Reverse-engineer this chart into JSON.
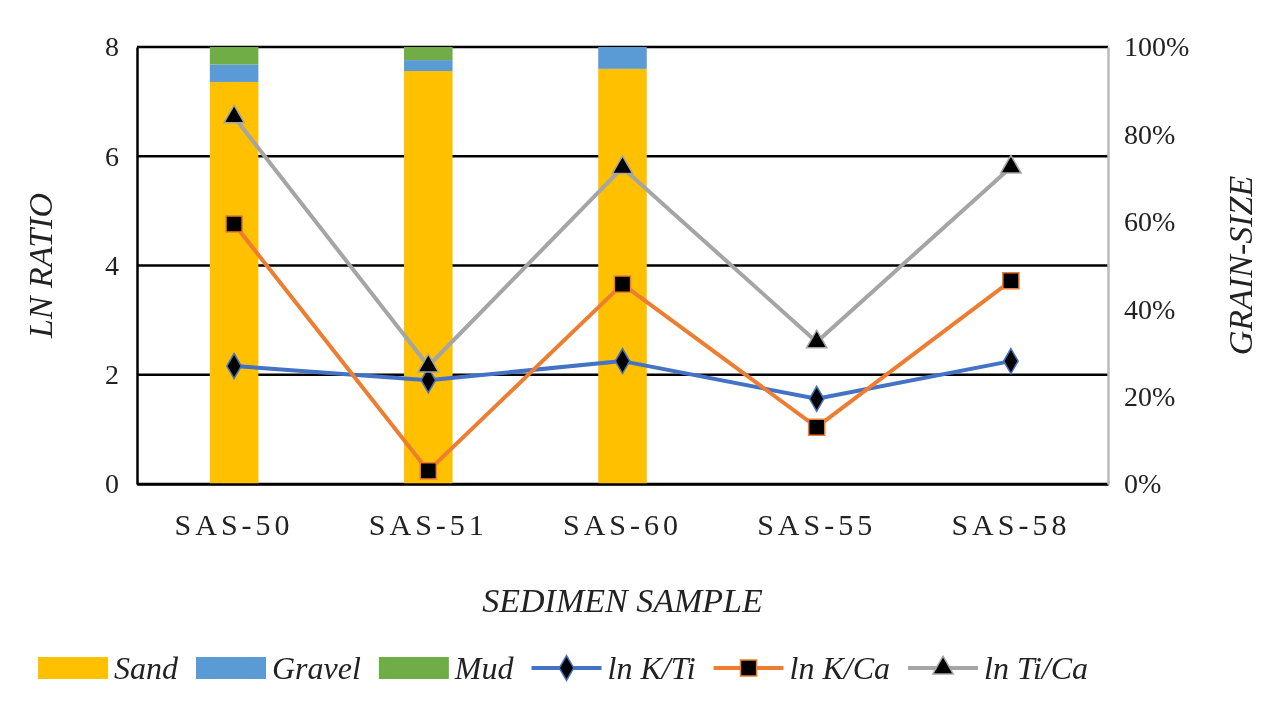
{
  "chart_data": {
    "type": "bar",
    "stacked": true,
    "xlabel": "SEDIMEN SAMPLE",
    "ylabel": "LN RATIO",
    "y2label": "GRAIN-SIZE",
    "categories": [
      "SAS-50",
      "SAS-51",
      "SAS-60",
      "SAS-55",
      "SAS-58"
    ],
    "series": [
      {
        "name": "Sand",
        "axis": "y2",
        "color": "#ffc000",
        "values": [
          92,
          94.5,
          95,
          null,
          null
        ]
      },
      {
        "name": "Gravel",
        "axis": "y2",
        "color": "#5b9bd5",
        "values": [
          4,
          2.5,
          5,
          null,
          null
        ]
      },
      {
        "name": "Mud",
        "axis": "y2",
        "color": "#70ad47",
        "values": [
          4,
          3,
          0,
          null,
          null
        ]
      },
      {
        "name": "ln K/Ti",
        "type": "line",
        "marker": "diamond",
        "color": "#4472c4",
        "values": [
          2.16,
          1.9,
          2.25,
          1.56,
          2.25
        ]
      },
      {
        "name": "ln K/Ca",
        "type": "line",
        "marker": "square",
        "color": "#ed7d31",
        "values": [
          4.76,
          0.24,
          3.66,
          1.04,
          3.72
        ]
      },
      {
        "name": "ln Ti/Ca",
        "type": "line",
        "marker": "triangle",
        "color": "#a5a5a5",
        "values": [
          6.72,
          2.16,
          5.79,
          2.6,
          5.8
        ]
      }
    ],
    "ylim": [
      0,
      8
    ],
    "yticks": [
      0,
      2,
      4,
      6,
      8
    ],
    "y2lim": [
      0,
      100
    ],
    "y2ticks": [
      {
        "value": 0,
        "label": "0%"
      },
      {
        "value": 20,
        "label": "20%"
      },
      {
        "value": 40,
        "label": "40%"
      },
      {
        "value": 60,
        "label": "60%"
      },
      {
        "value": 80,
        "label": "80%"
      },
      {
        "value": 100,
        "label": "100%"
      }
    ],
    "grid": "y",
    "legend": "bottom"
  }
}
